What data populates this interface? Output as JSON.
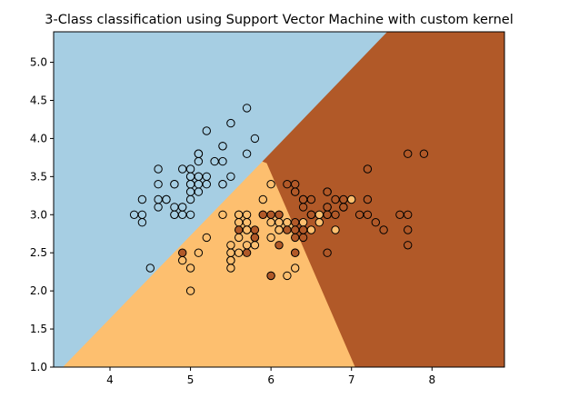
{
  "chart_data": {
    "type": "scatter",
    "title": "3-Class classification using Support Vector Machine with custom kernel",
    "xlabel": "",
    "ylabel": "",
    "xlim": [
      3.3,
      8.9
    ],
    "ylim": [
      1.0,
      5.4
    ],
    "xticks": [
      4,
      5,
      6,
      7,
      8
    ],
    "yticks": [
      1.0,
      1.5,
      2.0,
      2.5,
      3.0,
      3.5,
      4.0,
      4.5,
      5.0,
      5.5
    ],
    "grid": false,
    "legend": "none",
    "colors": {
      "class_0": "#a6cee3",
      "class_1": "#fdbf6f",
      "class_2": "#b15928"
    },
    "decision_regions": [
      {
        "class": "class_0",
        "polygon": [
          [
            3.3,
            1.0
          ],
          [
            3.3,
            5.4
          ],
          [
            7.45,
            5.4
          ],
          [
            5.9,
            3.7
          ],
          [
            3.42,
            1.0
          ]
        ]
      },
      {
        "class": "class_1",
        "polygon": [
          [
            3.42,
            1.0
          ],
          [
            5.9,
            3.7
          ],
          [
            5.95,
            3.68
          ],
          [
            7.05,
            1.0
          ]
        ]
      },
      {
        "class": "class_2",
        "polygon": [
          [
            5.95,
            3.68
          ],
          [
            5.9,
            3.7
          ],
          [
            7.45,
            5.4
          ],
          [
            8.9,
            5.4
          ],
          [
            8.9,
            1.0
          ],
          [
            7.05,
            1.0
          ]
        ]
      }
    ],
    "series": [
      {
        "class": "class_0",
        "points": [
          [
            5.1,
            3.5
          ],
          [
            4.9,
            3.0
          ],
          [
            4.7,
            3.2
          ],
          [
            4.6,
            3.1
          ],
          [
            5.0,
            3.6
          ],
          [
            5.4,
            3.9
          ],
          [
            4.6,
            3.4
          ],
          [
            5.0,
            3.4
          ],
          [
            4.4,
            2.9
          ],
          [
            4.9,
            3.1
          ],
          [
            5.4,
            3.7
          ],
          [
            4.8,
            3.4
          ],
          [
            4.8,
            3.0
          ],
          [
            4.3,
            3.0
          ],
          [
            5.8,
            4.0
          ],
          [
            5.7,
            4.4
          ],
          [
            5.4,
            3.9
          ],
          [
            5.1,
            3.5
          ],
          [
            5.7,
            3.8
          ],
          [
            5.1,
            3.8
          ],
          [
            5.4,
            3.4
          ],
          [
            5.1,
            3.7
          ],
          [
            4.6,
            3.6
          ],
          [
            5.1,
            3.3
          ],
          [
            4.8,
            3.4
          ],
          [
            5.0,
            3.0
          ],
          [
            5.0,
            3.4
          ],
          [
            5.2,
            3.5
          ],
          [
            5.2,
            3.4
          ],
          [
            4.7,
            3.2
          ],
          [
            4.8,
            3.1
          ],
          [
            5.4,
            3.4
          ],
          [
            5.2,
            4.1
          ],
          [
            5.5,
            4.2
          ],
          [
            4.9,
            3.1
          ],
          [
            5.0,
            3.2
          ],
          [
            5.5,
            3.5
          ],
          [
            4.9,
            3.6
          ],
          [
            4.4,
            3.0
          ],
          [
            5.1,
            3.4
          ],
          [
            5.0,
            3.5
          ],
          [
            4.5,
            2.3
          ],
          [
            4.4,
            3.2
          ],
          [
            5.0,
            3.5
          ],
          [
            5.1,
            3.8
          ],
          [
            4.8,
            3.0
          ],
          [
            5.1,
            3.8
          ],
          [
            4.6,
            3.2
          ],
          [
            5.3,
            3.7
          ],
          [
            5.0,
            3.3
          ]
        ]
      },
      {
        "class": "class_1",
        "points": [
          [
            7.0,
            3.2
          ],
          [
            6.4,
            3.2
          ],
          [
            6.9,
            3.1
          ],
          [
            5.5,
            2.3
          ],
          [
            6.5,
            2.8
          ],
          [
            5.7,
            2.8
          ],
          [
            6.3,
            3.3
          ],
          [
            4.9,
            2.4
          ],
          [
            6.6,
            2.9
          ],
          [
            5.2,
            2.7
          ],
          [
            5.0,
            2.0
          ],
          [
            5.9,
            3.0
          ],
          [
            6.0,
            2.2
          ],
          [
            6.1,
            2.9
          ],
          [
            5.6,
            2.9
          ],
          [
            6.7,
            3.1
          ],
          [
            5.6,
            3.0
          ],
          [
            5.8,
            2.7
          ],
          [
            6.2,
            2.2
          ],
          [
            5.6,
            2.5
          ],
          [
            5.9,
            3.2
          ],
          [
            6.1,
            2.8
          ],
          [
            6.3,
            2.5
          ],
          [
            6.1,
            2.8
          ],
          [
            6.4,
            2.9
          ],
          [
            6.6,
            3.0
          ],
          [
            6.8,
            2.8
          ],
          [
            6.7,
            3.0
          ],
          [
            6.0,
            2.9
          ],
          [
            5.7,
            2.6
          ],
          [
            5.5,
            2.4
          ],
          [
            5.5,
            2.4
          ],
          [
            5.8,
            2.7
          ],
          [
            6.0,
            2.7
          ],
          [
            5.4,
            3.0
          ],
          [
            6.0,
            3.4
          ],
          [
            6.7,
            3.1
          ],
          [
            6.3,
            2.3
          ],
          [
            5.6,
            3.0
          ],
          [
            5.5,
            2.5
          ],
          [
            5.5,
            2.6
          ],
          [
            6.1,
            3.0
          ],
          [
            5.8,
            2.6
          ],
          [
            5.0,
            2.3
          ],
          [
            5.6,
            2.7
          ],
          [
            5.7,
            3.0
          ],
          [
            5.7,
            2.9
          ],
          [
            6.2,
            2.9
          ],
          [
            5.1,
            2.5
          ],
          [
            5.7,
            2.8
          ]
        ]
      },
      {
        "class": "class_2",
        "points": [
          [
            6.3,
            3.3
          ],
          [
            5.8,
            2.7
          ],
          [
            7.1,
            3.0
          ],
          [
            6.3,
            2.9
          ],
          [
            6.5,
            3.0
          ],
          [
            7.6,
            3.0
          ],
          [
            4.9,
            2.5
          ],
          [
            7.3,
            2.9
          ],
          [
            6.7,
            2.5
          ],
          [
            7.2,
            3.6
          ],
          [
            6.5,
            3.2
          ],
          [
            6.4,
            2.7
          ],
          [
            6.8,
            3.0
          ],
          [
            5.7,
            2.5
          ],
          [
            5.8,
            2.8
          ],
          [
            6.4,
            3.2
          ],
          [
            6.5,
            3.0
          ],
          [
            7.7,
            3.8
          ],
          [
            7.7,
            2.6
          ],
          [
            6.0,
            2.2
          ],
          [
            6.9,
            3.2
          ],
          [
            5.6,
            2.8
          ],
          [
            7.7,
            2.8
          ],
          [
            6.3,
            2.7
          ],
          [
            6.7,
            3.3
          ],
          [
            7.2,
            3.2
          ],
          [
            6.2,
            2.8
          ],
          [
            6.1,
            3.0
          ],
          [
            6.4,
            2.8
          ],
          [
            7.2,
            3.0
          ],
          [
            7.4,
            2.8
          ],
          [
            7.9,
            3.8
          ],
          [
            6.4,
            2.8
          ],
          [
            6.3,
            2.8
          ],
          [
            6.1,
            2.6
          ],
          [
            7.7,
            3.0
          ],
          [
            6.3,
            3.4
          ],
          [
            6.4,
            3.1
          ],
          [
            6.0,
            3.0
          ],
          [
            6.9,
            3.1
          ],
          [
            6.7,
            3.1
          ],
          [
            6.9,
            3.1
          ],
          [
            5.8,
            2.7
          ],
          [
            6.8,
            3.2
          ],
          [
            6.7,
            3.3
          ],
          [
            6.7,
            3.0
          ],
          [
            6.3,
            2.5
          ],
          [
            6.5,
            3.0
          ],
          [
            6.2,
            3.4
          ],
          [
            5.9,
            3.0
          ]
        ]
      }
    ]
  }
}
